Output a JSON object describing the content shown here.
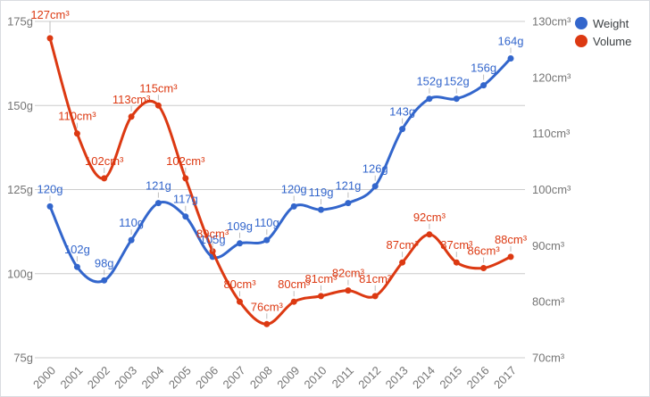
{
  "chart_data": {
    "type": "line",
    "curve": "smooth",
    "title": "",
    "categories": [
      "2000",
      "2001",
      "2002",
      "2003",
      "2004",
      "2005",
      "2006",
      "2007",
      "2008",
      "2009",
      "2010",
      "2011",
      "2012",
      "2013",
      "2014",
      "2015",
      "2016",
      "2017"
    ],
    "series": [
      {
        "name": "Weight",
        "unit": "g",
        "axis": "left",
        "color": "#3366CC",
        "values": [
          120,
          102,
          98,
          110,
          121,
          117,
          105,
          109,
          110,
          120,
          119,
          121,
          126,
          143,
          152,
          152,
          156,
          164
        ]
      },
      {
        "name": "Volume",
        "unit": "cm³",
        "axis": "right",
        "color": "#DC3912",
        "values": [
          127,
          110,
          102,
          113,
          115,
          102,
          89,
          80,
          76,
          80,
          81,
          82,
          81,
          87,
          92,
          87,
          86,
          88
        ]
      }
    ],
    "left_axis": {
      "min": 75,
      "max": 175,
      "ticks": [
        175,
        150,
        125,
        100,
        75
      ],
      "tick_labels": [
        "175g",
        "150g",
        "125g",
        "100g",
        "75g"
      ]
    },
    "right_axis": {
      "min": 70,
      "max": 130,
      "ticks": [
        130,
        120,
        110,
        100,
        90,
        80,
        70
      ],
      "tick_labels": [
        "130cm³",
        "120cm³",
        "110cm³",
        "100cm³",
        "90cm³",
        "80cm³",
        "70cm³"
      ]
    },
    "grid": {
      "horizontal": true,
      "vertical": false,
      "color": "#cccccc"
    },
    "legend_position": "top-right",
    "point_labels": true,
    "label_offsets": {
      "Volume": {
        "0": [
          0,
          -7
        ]
      }
    },
    "colors": {
      "axis_text": "#757575",
      "legend_text": "#3c4043",
      "stem": "#bdbdbd",
      "background": "#ffffff",
      "border": "#dadce0"
    }
  }
}
